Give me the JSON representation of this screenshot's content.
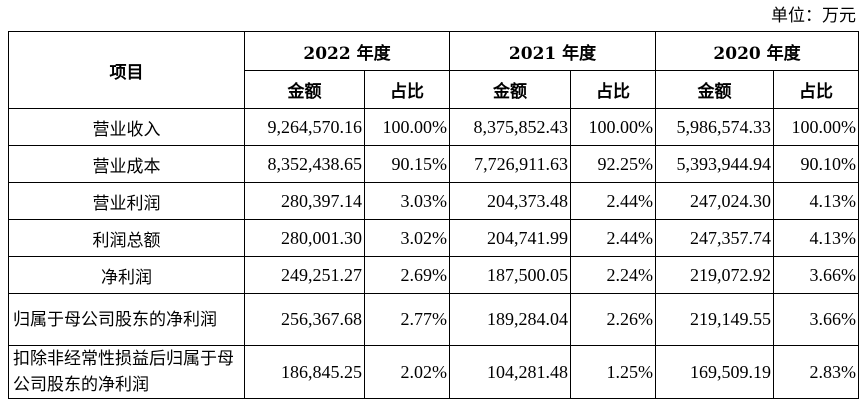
{
  "unit_label": "单位：万元",
  "header": {
    "item": "项目",
    "years": [
      "2022 年度",
      "2021 年度",
      "2020 年度"
    ],
    "amount": "金额",
    "ratio": "占比"
  },
  "rows": [
    {
      "name": "营业收入",
      "values": [
        "9,264,570.16",
        "100.00%",
        "8,375,852.43",
        "100.00%",
        "5,986,574.33",
        "100.00%"
      ]
    },
    {
      "name": "营业成本",
      "values": [
        "8,352,438.65",
        "90.15%",
        "7,726,911.63",
        "92.25%",
        "5,393,944.94",
        "90.10%"
      ]
    },
    {
      "name": "营业利润",
      "values": [
        "280,397.14",
        "3.03%",
        "204,373.48",
        "2.44%",
        "247,024.30",
        "4.13%"
      ]
    },
    {
      "name": "利润总额",
      "values": [
        "280,001.30",
        "3.02%",
        "204,741.99",
        "2.44%",
        "247,357.74",
        "4.13%"
      ]
    },
    {
      "name": "净利润",
      "values": [
        "249,251.27",
        "2.69%",
        "187,500.05",
        "2.24%",
        "219,072.92",
        "3.66%"
      ]
    },
    {
      "name": "归属于母公司股东的净利润",
      "values": [
        "256,367.68",
        "2.77%",
        "189,284.04",
        "2.26%",
        "219,149.55",
        "3.66%"
      ]
    },
    {
      "name": "扣除非经常性损益后归属于母公司股东的净利润",
      "values": [
        "186,845.25",
        "2.02%",
        "104,281.48",
        "1.25%",
        "169,509.19",
        "2.83%"
      ]
    }
  ]
}
